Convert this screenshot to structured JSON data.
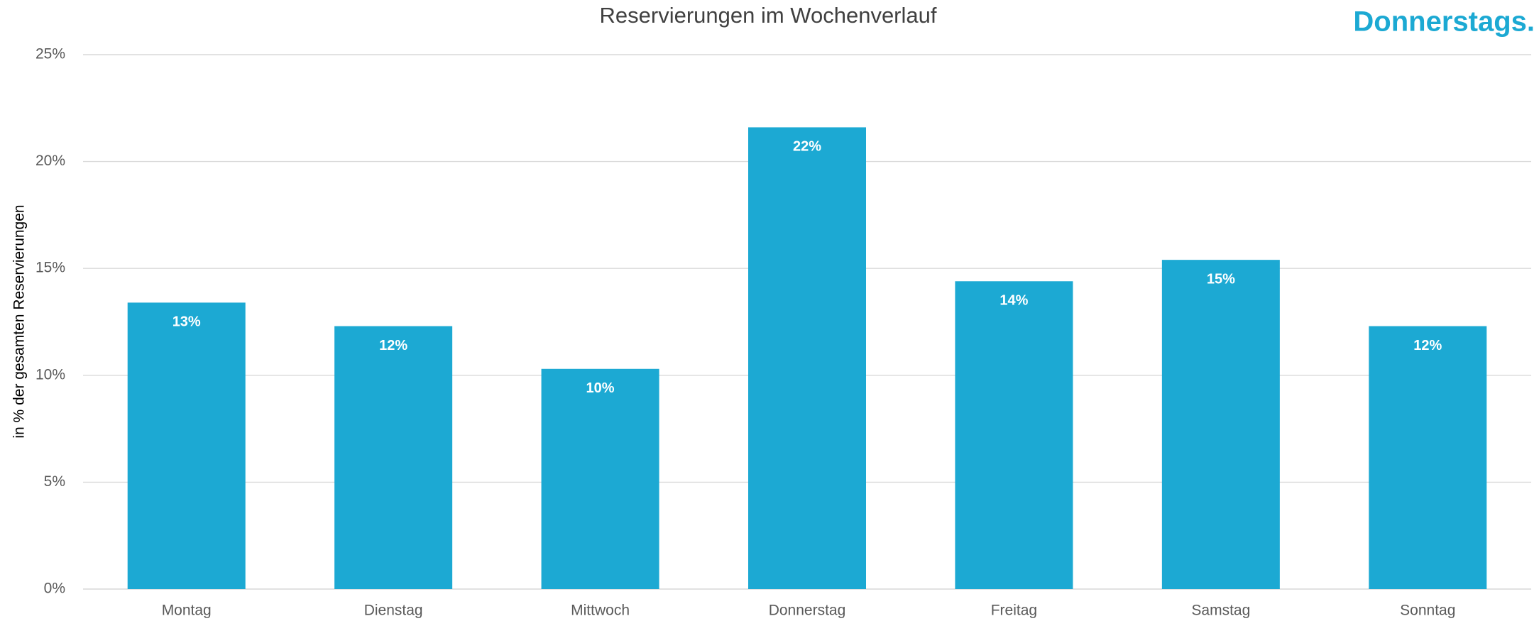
{
  "chart_data": {
    "type": "bar",
    "title": "Reservierungen im Wochenverlauf",
    "annotation": "Donnerstags.",
    "y_label": "in % der gesamten Reservierungen",
    "categories": [
      "Montag",
      "Dienstag",
      "Mittwoch",
      "Donnerstag",
      "Freitag",
      "Samstag",
      "Sonntag"
    ],
    "values": [
      13.4,
      12.3,
      10.3,
      21.6,
      14.4,
      15.4,
      12.3
    ],
    "value_labels": [
      "13%",
      "12%",
      "10%",
      "22%",
      "14%",
      "15%",
      "12%"
    ],
    "color": "#1ca9d3",
    "ylim": [
      0,
      25
    ],
    "yticks": [
      {
        "value": 0,
        "label": "0%"
      },
      {
        "value": 5,
        "label": "5%"
      },
      {
        "value": 10,
        "label": "10%"
      },
      {
        "value": 15,
        "label": "15%"
      },
      {
        "value": 20,
        "label": "20%"
      },
      {
        "value": 25,
        "label": "25%"
      }
    ],
    "grid": true
  }
}
